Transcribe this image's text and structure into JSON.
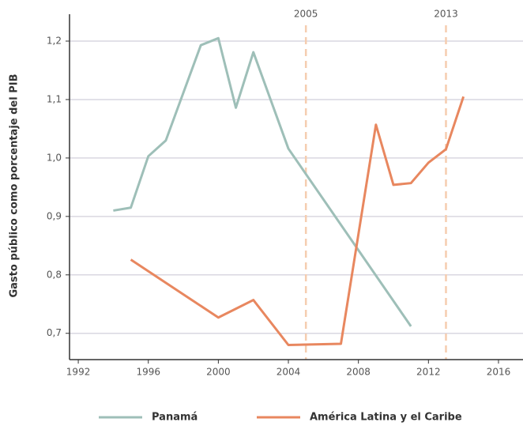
{
  "chart_data": {
    "type": "line",
    "y_label": "Gasto público como porcentaje del PIB",
    "series": [
      {
        "name": "Panamá",
        "color": "#9ebfb8",
        "x": [
          1994,
          1995,
          1996,
          1997,
          1999,
          2000,
          2001,
          2002,
          2004,
          2011
        ],
        "values": [
          0.91,
          0.915,
          1.003,
          1.03,
          1.193,
          1.205,
          1.086,
          1.181,
          1.016,
          0.712
        ]
      },
      {
        "name": "América Latina y el Caribe",
        "color": "#e8875f",
        "x": [
          1995,
          2000,
          2002,
          2004,
          2007,
          2009,
          2010,
          2011,
          2012,
          2013,
          2014
        ],
        "values": [
          0.826,
          0.727,
          0.757,
          0.68,
          0.682,
          1.057,
          0.954,
          0.957,
          0.992,
          1.015,
          1.105
        ]
      }
    ],
    "reference_lines": [
      {
        "x": 2005,
        "label": "2005"
      },
      {
        "x": 2013,
        "label": "2013"
      }
    ],
    "reference_color": "#f5cdb0",
    "xlim": [
      1991.5,
      2017.4
    ],
    "xticks": [
      1992,
      1996,
      2000,
      2004,
      2008,
      2012,
      2016
    ],
    "ylim": [
      0.655,
      1.246
    ],
    "yticks": [
      {
        "value": 0.7,
        "label": "0,7"
      },
      {
        "value": 0.8,
        "label": "0,8"
      },
      {
        "value": 0.9,
        "label": "0,9"
      },
      {
        "value": 1.0,
        "label": "1,0"
      },
      {
        "value": 1.1,
        "label": "1,1"
      },
      {
        "value": 1.2,
        "label": "1,2"
      }
    ],
    "grid": true
  }
}
